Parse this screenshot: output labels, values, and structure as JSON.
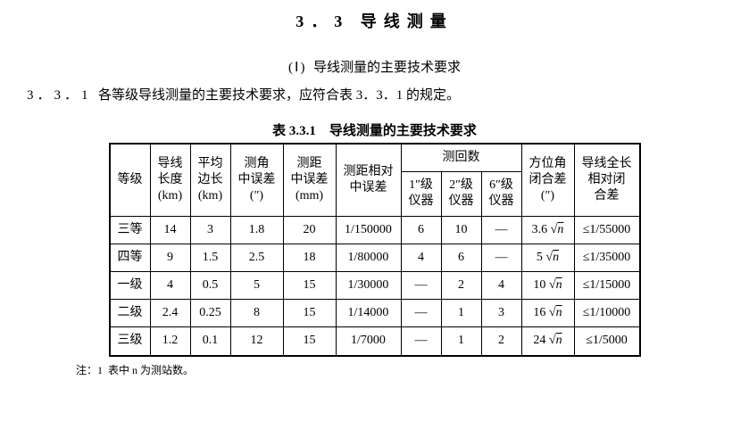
{
  "section": {
    "number": "3．3",
    "title": "导线测量"
  },
  "subsection": {
    "number": "(Ⅰ)",
    "title": "导线测量的主要技术要求"
  },
  "paragraph": {
    "number": "3．3．1",
    "text": "各等级导线测量的主要技术要求，应符合表 3．3．1 的规定。"
  },
  "table_caption": "表 3.3.1　导线测量的主要技术要求",
  "columns": {
    "grade": "等级",
    "length": "导线\n长度\n(km)",
    "avg_side": "平均\n边长\n(km)",
    "angle_err": "测角\n中误差\n(″)",
    "dist_err": "测距\n中误差\n(mm)",
    "rel_dist_err": "测距相对\n中误差",
    "rounds_group": "测回数",
    "inst1": "1″级\n仪器",
    "inst2": "2″级\n仪器",
    "inst6": "6″级\n仪器",
    "azimuth": "方位角\n闭合差\n(″)",
    "total_rel": "导线全长\n相对闭\n合差"
  },
  "rows": [
    {
      "grade": "三等",
      "length": "14",
      "avg_side": "3",
      "angle_err": "1.8",
      "dist_err": "20",
      "rel_dist_err": "1/150000",
      "inst1": "6",
      "inst2": "10",
      "inst6": "—",
      "azimuth_coeff": "3.6",
      "total_rel": "≤1/55000"
    },
    {
      "grade": "四等",
      "length": "9",
      "avg_side": "1.5",
      "angle_err": "2.5",
      "dist_err": "18",
      "rel_dist_err": "1/80000",
      "inst1": "4",
      "inst2": "6",
      "inst6": "—",
      "azimuth_coeff": "5",
      "total_rel": "≤1/35000"
    },
    {
      "grade": "一级",
      "length": "4",
      "avg_side": "0.5",
      "angle_err": "5",
      "dist_err": "15",
      "rel_dist_err": "1/30000",
      "inst1": "—",
      "inst2": "2",
      "inst6": "4",
      "azimuth_coeff": "10",
      "total_rel": "≤1/15000"
    },
    {
      "grade": "二级",
      "length": "2.4",
      "avg_side": "0.25",
      "angle_err": "8",
      "dist_err": "15",
      "rel_dist_err": "1/14000",
      "inst1": "—",
      "inst2": "1",
      "inst6": "3",
      "azimuth_coeff": "16",
      "total_rel": "≤1/10000"
    },
    {
      "grade": "三级",
      "length": "1.2",
      "avg_side": "0.1",
      "angle_err": "12",
      "dist_err": "15",
      "rel_dist_err": "1/7000",
      "inst1": "—",
      "inst2": "1",
      "inst6": "2",
      "azimuth_coeff": "24",
      "total_rel": "≤1/5000"
    }
  ],
  "footnote": {
    "label": "注：1",
    "text": "表中 n 为测站数。"
  }
}
